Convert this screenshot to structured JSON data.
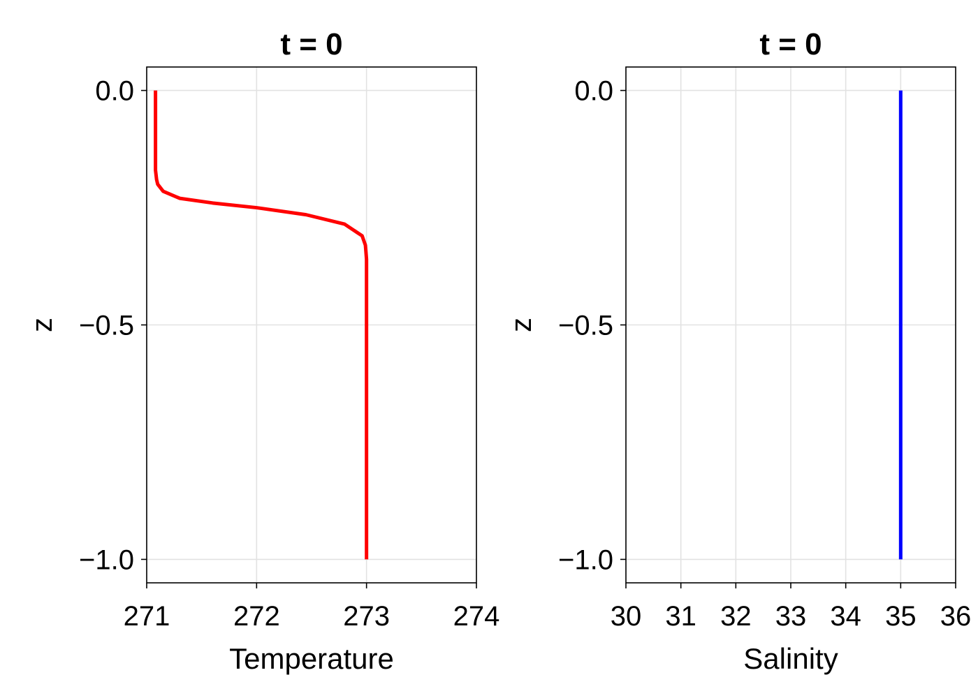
{
  "chart_data": [
    {
      "type": "line",
      "title": "t = 0",
      "xlabel": "Temperature",
      "ylabel": "z",
      "xlim": [
        271,
        274
      ],
      "ylim": [
        -1.05,
        0.05
      ],
      "xticks": [
        271,
        272,
        273,
        274
      ],
      "xtick_labels": [
        "271",
        "272",
        "273",
        "274"
      ],
      "yticks": [
        0.0,
        -0.5,
        -1.0
      ],
      "ytick_labels": [
        "0.0",
        "−0.5",
        "−1.0"
      ],
      "grid": true,
      "series": [
        {
          "color": "#ff0000",
          "x": [
            271.08,
            271.08,
            271.08,
            271.09,
            271.1,
            271.15,
            271.3,
            271.6,
            272.0,
            272.45,
            272.8,
            272.96,
            272.99,
            273.0,
            273.0,
            273.0
          ],
          "y": [
            0.0,
            -0.1,
            -0.17,
            -0.19,
            -0.2,
            -0.215,
            -0.23,
            -0.24,
            -0.25,
            -0.265,
            -0.285,
            -0.31,
            -0.33,
            -0.36,
            -0.5,
            -1.0
          ]
        }
      ]
    },
    {
      "type": "line",
      "title": "t = 0",
      "xlabel": "Salinity",
      "ylabel": "z",
      "xlim": [
        30,
        36
      ],
      "ylim": [
        -1.05,
        0.05
      ],
      "xticks": [
        30,
        31,
        32,
        33,
        34,
        35,
        36
      ],
      "xtick_labels": [
        "30",
        "31",
        "32",
        "33",
        "34",
        "35",
        "36"
      ],
      "yticks": [
        0.0,
        -0.5,
        -1.0
      ],
      "ytick_labels": [
        "0.0",
        "−0.5",
        "−1.0"
      ],
      "grid": true,
      "series": [
        {
          "color": "#0000ff",
          "x": [
            35,
            35
          ],
          "y": [
            0.0,
            -1.0
          ]
        }
      ]
    }
  ]
}
